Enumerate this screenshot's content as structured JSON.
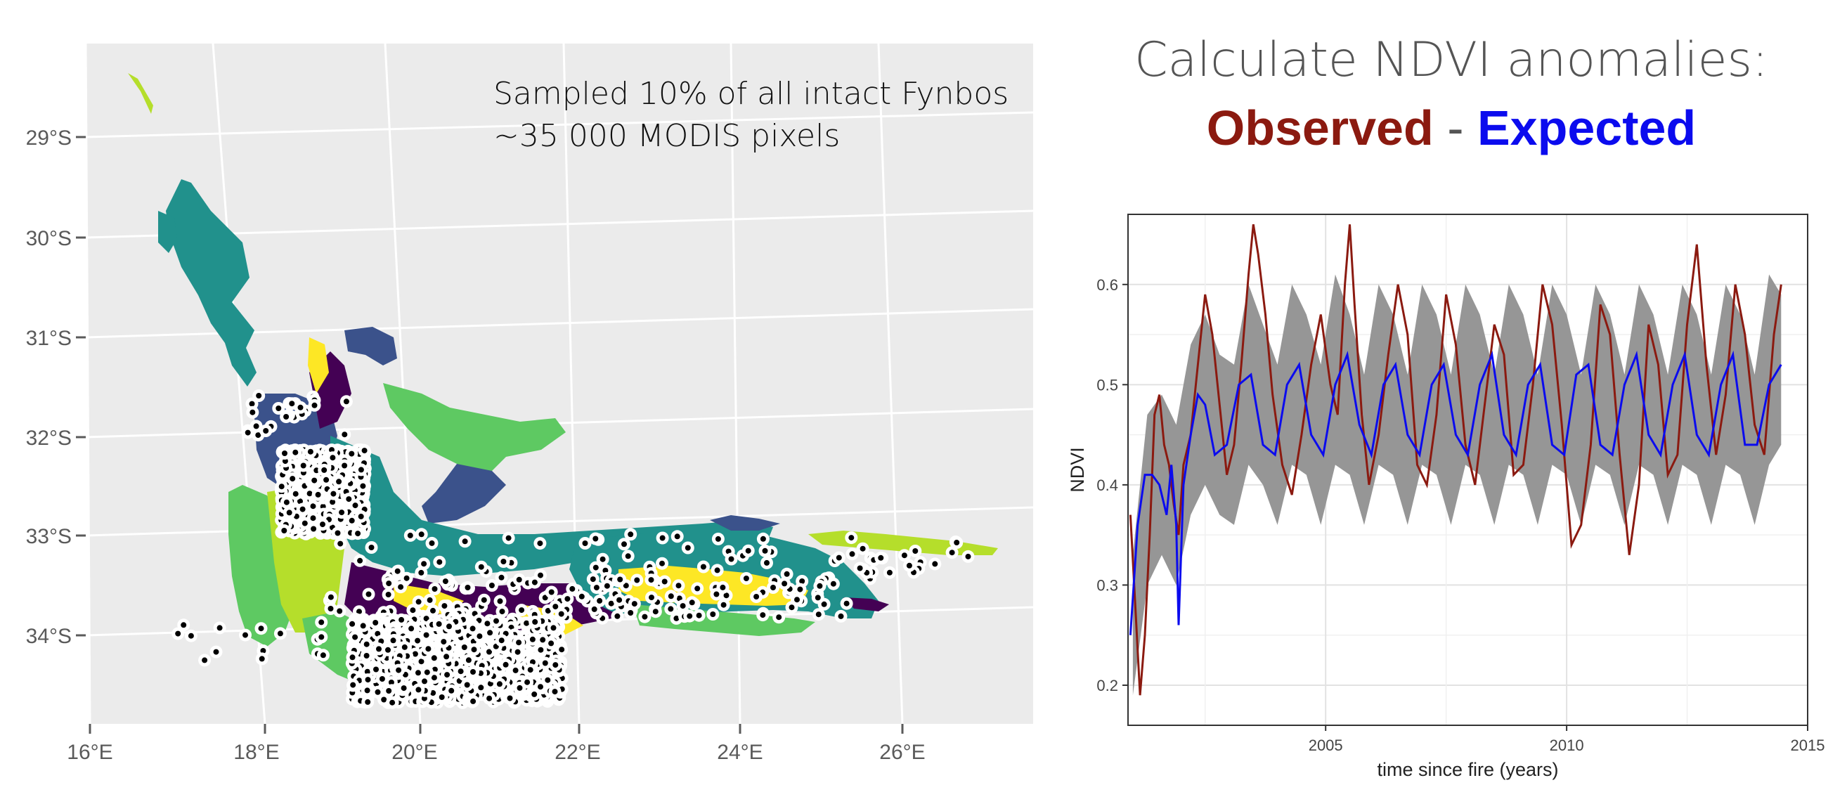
{
  "map": {
    "annotation_line1": "Sampled 10% of all intact Fynbos",
    "annotation_line2": "~35 000 MODIS pixels",
    "y_ticks": [
      "29°S",
      "30°S",
      "31°S",
      "32°S",
      "33°S",
      "34°S"
    ],
    "x_ticks": [
      "16°E",
      "18°E",
      "20°E",
      "22°E",
      "24°E",
      "26°E"
    ],
    "colors": {
      "panel_bg": "#ebebeb",
      "grid": "#ffffff",
      "palette": [
        "#440154",
        "#3b528b",
        "#21918c",
        "#5ec962",
        "#b5de2b",
        "#fde725"
      ],
      "sample_point_fill": "#000000",
      "sample_point_halo": "#ffffff"
    }
  },
  "title": {
    "line1": "Calculate NDVI anomalies:",
    "observed": "Observed",
    "separator": "-",
    "expected": "Expected"
  },
  "chart_data": {
    "type": "line",
    "xlabel": "time since fire (years)",
    "ylabel": "NDVI",
    "xlim": [
      2000.9,
      2015.0
    ],
    "ylim": [
      0.16,
      0.67
    ],
    "x_ticks": [
      2005,
      2010,
      2015
    ],
    "y_ticks": [
      0.2,
      0.3,
      0.4,
      0.5,
      0.6
    ],
    "grid": true,
    "series": [
      {
        "color": "#8b1a10",
        "x": [
          2000.95,
          2001.05,
          2001.15,
          2001.25,
          2001.35,
          2001.45,
          2001.55,
          2001.65,
          2001.75,
          2001.85,
          2001.95,
          2002.05,
          2002.2,
          2002.35,
          2002.5,
          2002.65,
          2002.8,
          2002.95,
          2003.1,
          2003.25,
          2003.4,
          2003.5,
          2003.6,
          2003.75,
          2003.9,
          2004.1,
          2004.3,
          2004.5,
          2004.7,
          2004.9,
          2005.1,
          2005.25,
          2005.4,
          2005.5,
          2005.6,
          2005.75,
          2005.9,
          2006.1,
          2006.3,
          2006.5,
          2006.7,
          2006.9,
          2007.1,
          2007.3,
          2007.5,
          2007.7,
          2007.9,
          2008.1,
          2008.3,
          2008.5,
          2008.7,
          2008.9,
          2009.1,
          2009.3,
          2009.5,
          2009.7,
          2009.9,
          2010.1,
          2010.3,
          2010.5,
          2010.7,
          2010.9,
          2011.1,
          2011.3,
          2011.5,
          2011.7,
          2011.9,
          2012.1,
          2012.3,
          2012.5,
          2012.7,
          2012.9,
          2013.1,
          2013.3,
          2013.5,
          2013.7,
          2013.9,
          2014.1,
          2014.3,
          2014.45
        ],
        "y": [
          0.37,
          0.28,
          0.19,
          0.25,
          0.35,
          0.47,
          0.49,
          0.44,
          0.42,
          0.38,
          0.35,
          0.42,
          0.45,
          0.52,
          0.59,
          0.55,
          0.48,
          0.41,
          0.44,
          0.52,
          0.61,
          0.66,
          0.63,
          0.57,
          0.49,
          0.42,
          0.39,
          0.45,
          0.52,
          0.57,
          0.5,
          0.47,
          0.6,
          0.66,
          0.58,
          0.47,
          0.4,
          0.45,
          0.53,
          0.6,
          0.55,
          0.42,
          0.4,
          0.47,
          0.59,
          0.54,
          0.44,
          0.4,
          0.48,
          0.56,
          0.53,
          0.41,
          0.42,
          0.5,
          0.6,
          0.56,
          0.46,
          0.34,
          0.36,
          0.44,
          0.58,
          0.55,
          0.43,
          0.33,
          0.4,
          0.56,
          0.52,
          0.41,
          0.43,
          0.56,
          0.64,
          0.52,
          0.43,
          0.49,
          0.6,
          0.55,
          0.46,
          0.43,
          0.55,
          0.6
        ]
      },
      {
        "color": "#0b0bee",
        "x": [
          2000.95,
          2001.1,
          2001.25,
          2001.4,
          2001.55,
          2001.7,
          2001.8,
          2001.9,
          2001.95,
          2002.05,
          2002.2,
          2002.35,
          2002.5,
          2002.7,
          2002.95,
          2003.2,
          2003.45,
          2003.7,
          2003.95,
          2004.2,
          2004.45,
          2004.7,
          2004.95,
          2005.2,
          2005.45,
          2005.7,
          2005.95,
          2006.2,
          2006.45,
          2006.7,
          2006.95,
          2007.2,
          2007.45,
          2007.7,
          2007.95,
          2008.2,
          2008.45,
          2008.7,
          2008.95,
          2009.2,
          2009.45,
          2009.7,
          2009.95,
          2010.2,
          2010.45,
          2010.7,
          2010.95,
          2011.2,
          2011.45,
          2011.7,
          2011.95,
          2012.2,
          2012.45,
          2012.7,
          2012.95,
          2013.2,
          2013.45,
          2013.7,
          2013.95,
          2014.2,
          2014.45
        ],
        "y": [
          0.25,
          0.36,
          0.41,
          0.41,
          0.4,
          0.37,
          0.42,
          0.36,
          0.26,
          0.4,
          0.45,
          0.49,
          0.48,
          0.43,
          0.44,
          0.5,
          0.51,
          0.44,
          0.43,
          0.5,
          0.52,
          0.45,
          0.43,
          0.5,
          0.53,
          0.46,
          0.43,
          0.5,
          0.52,
          0.45,
          0.43,
          0.5,
          0.52,
          0.45,
          0.43,
          0.5,
          0.53,
          0.45,
          0.43,
          0.5,
          0.52,
          0.44,
          0.43,
          0.51,
          0.52,
          0.44,
          0.43,
          0.5,
          0.53,
          0.45,
          0.43,
          0.5,
          0.53,
          0.45,
          0.43,
          0.5,
          0.53,
          0.44,
          0.44,
          0.5,
          0.52
        ]
      }
    ],
    "band": {
      "color": "#969696",
      "x": [
        2001.0,
        2001.3,
        2001.6,
        2001.9,
        2002.2,
        2002.5,
        2002.8,
        2003.1,
        2003.4,
        2003.7,
        2004.0,
        2004.3,
        2004.6,
        2004.9,
        2005.2,
        2005.5,
        2005.8,
        2006.1,
        2006.4,
        2006.7,
        2007.0,
        2007.3,
        2007.6,
        2007.9,
        2008.2,
        2008.5,
        2008.8,
        2009.1,
        2009.4,
        2009.7,
        2010.0,
        2010.3,
        2010.6,
        2010.9,
        2011.2,
        2011.5,
        2011.8,
        2012.1,
        2012.4,
        2012.7,
        2013.0,
        2013.3,
        2013.6,
        2013.9,
        2014.2,
        2014.45
      ],
      "lower": [
        0.19,
        0.3,
        0.33,
        0.3,
        0.37,
        0.4,
        0.37,
        0.36,
        0.42,
        0.4,
        0.36,
        0.42,
        0.41,
        0.36,
        0.42,
        0.41,
        0.36,
        0.42,
        0.41,
        0.36,
        0.42,
        0.41,
        0.36,
        0.42,
        0.41,
        0.36,
        0.42,
        0.41,
        0.36,
        0.42,
        0.41,
        0.36,
        0.42,
        0.41,
        0.36,
        0.42,
        0.41,
        0.36,
        0.42,
        0.41,
        0.36,
        0.42,
        0.41,
        0.36,
        0.42,
        0.44
      ],
      "upper": [
        0.33,
        0.47,
        0.49,
        0.46,
        0.54,
        0.57,
        0.53,
        0.52,
        0.6,
        0.56,
        0.52,
        0.6,
        0.57,
        0.52,
        0.61,
        0.57,
        0.51,
        0.6,
        0.57,
        0.51,
        0.6,
        0.57,
        0.51,
        0.6,
        0.57,
        0.51,
        0.6,
        0.57,
        0.51,
        0.6,
        0.57,
        0.51,
        0.6,
        0.57,
        0.51,
        0.6,
        0.57,
        0.51,
        0.6,
        0.57,
        0.51,
        0.6,
        0.57,
        0.51,
        0.61,
        0.59
      ]
    }
  }
}
